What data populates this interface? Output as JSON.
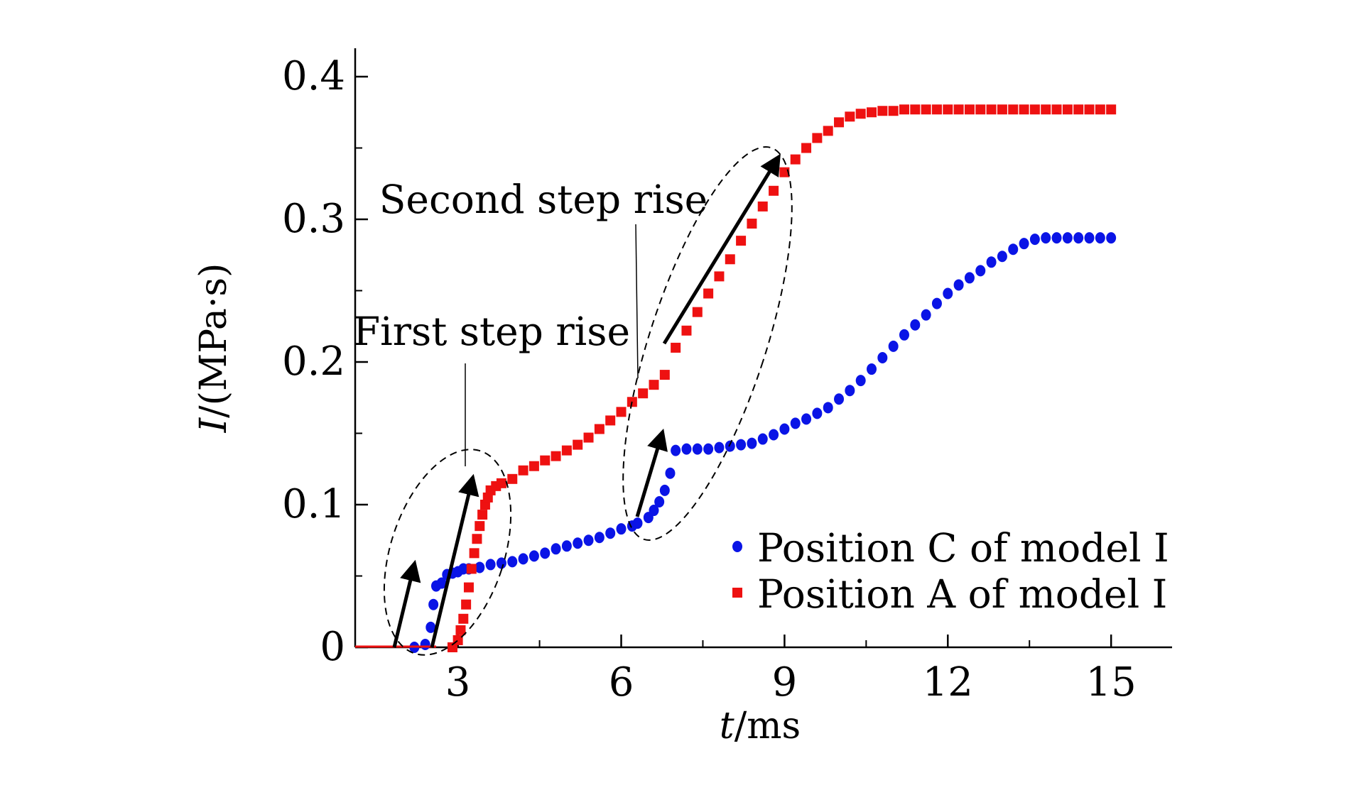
{
  "chart_data": {
    "type": "scatter",
    "xlabel_italic": "t",
    "xlabel_rest": "/ms",
    "ylabel_italic": "I",
    "ylabel_rest": "/(MPa·s)",
    "xlim": [
      1.5,
      16
    ],
    "ylim": [
      0,
      0.42
    ],
    "xticks": [
      3,
      6,
      9,
      12,
      15
    ],
    "xtick_labels": [
      "3",
      "6",
      "9",
      "12",
      "15"
    ],
    "yticks": [
      0,
      0.1,
      0.2,
      0.3,
      0.4
    ],
    "ytick_labels": [
      "0",
      "0.1",
      "0.2",
      "0.3",
      "0.4"
    ],
    "grid": false,
    "legend_position": "bottom-right",
    "annotations": {
      "first": "First step rise",
      "second": "Second step rise"
    },
    "series": [
      {
        "name": "Position C of model Ⅰ",
        "color": "#0a14e6",
        "marker": "circle",
        "x": [
          1.5,
          2.2,
          2.4,
          2.5,
          2.55,
          2.6,
          2.7,
          2.8,
          2.9,
          3.0,
          3.1,
          3.2,
          3.4,
          3.6,
          3.8,
          4.0,
          4.2,
          4.4,
          4.6,
          4.8,
          5.0,
          5.2,
          5.4,
          5.6,
          5.8,
          6.0,
          6.2,
          6.3,
          6.5,
          6.6,
          6.7,
          6.8,
          6.9,
          7.0,
          7.2,
          7.4,
          7.6,
          7.8,
          8.0,
          8.2,
          8.4,
          8.6,
          8.8,
          9.0,
          9.2,
          9.4,
          9.6,
          9.8,
          10.0,
          10.2,
          10.4,
          10.6,
          10.8,
          11.0,
          11.2,
          11.4,
          11.6,
          11.8,
          12.0,
          12.2,
          12.4,
          12.6,
          12.8,
          13.0,
          13.2,
          13.4,
          13.6,
          13.8,
          14.0,
          14.2,
          14.4,
          14.6,
          14.8,
          15.0
        ],
        "y": [
          0,
          0,
          0.002,
          0.014,
          0.03,
          0.043,
          0.045,
          0.051,
          0.052,
          0.053,
          0.055,
          0.055,
          0.056,
          0.058,
          0.059,
          0.06,
          0.062,
          0.064,
          0.066,
          0.069,
          0.071,
          0.073,
          0.075,
          0.077,
          0.08,
          0.083,
          0.085,
          0.087,
          0.091,
          0.096,
          0.102,
          0.11,
          0.122,
          0.138,
          0.139,
          0.139,
          0.139,
          0.14,
          0.141,
          0.142,
          0.143,
          0.146,
          0.149,
          0.153,
          0.157,
          0.16,
          0.164,
          0.168,
          0.174,
          0.18,
          0.187,
          0.195,
          0.203,
          0.211,
          0.219,
          0.226,
          0.233,
          0.241,
          0.248,
          0.254,
          0.259,
          0.264,
          0.27,
          0.274,
          0.279,
          0.283,
          0.286,
          0.287,
          0.287,
          0.287,
          0.287,
          0.287,
          0.287,
          0.287
        ]
      },
      {
        "name": "Position A of model Ⅰ",
        "color": "#ee1111",
        "marker": "square",
        "x": [
          1.5,
          2.9,
          3.0,
          3.05,
          3.1,
          3.15,
          3.2,
          3.25,
          3.3,
          3.35,
          3.4,
          3.45,
          3.5,
          3.55,
          3.6,
          3.7,
          3.8,
          4.0,
          4.2,
          4.4,
          4.6,
          4.8,
          5.0,
          5.2,
          5.4,
          5.6,
          5.8,
          6.0,
          6.2,
          6.4,
          6.6,
          6.8,
          7.0,
          7.2,
          7.4,
          7.6,
          7.8,
          8.0,
          8.2,
          8.4,
          8.6,
          8.8,
          9.0,
          9.2,
          9.4,
          9.6,
          9.8,
          10.0,
          10.2,
          10.4,
          10.6,
          10.8,
          11.0,
          11.2,
          11.4,
          11.6,
          11.8,
          12.0,
          12.2,
          12.4,
          12.6,
          12.8,
          13.0,
          13.2,
          13.4,
          13.6,
          13.8,
          14.0,
          14.2,
          14.4,
          14.6,
          14.8,
          15.0
        ],
        "y": [
          0,
          0,
          0.005,
          0.012,
          0.02,
          0.03,
          0.042,
          0.055,
          0.066,
          0.076,
          0.085,
          0.093,
          0.1,
          0.105,
          0.11,
          0.113,
          0.115,
          0.118,
          0.124,
          0.127,
          0.131,
          0.134,
          0.138,
          0.142,
          0.147,
          0.153,
          0.159,
          0.165,
          0.172,
          0.178,
          0.184,
          0.191,
          0.21,
          0.222,
          0.235,
          0.248,
          0.26,
          0.272,
          0.285,
          0.297,
          0.309,
          0.32,
          0.333,
          0.342,
          0.35,
          0.357,
          0.362,
          0.368,
          0.372,
          0.374,
          0.375,
          0.376,
          0.376,
          0.377,
          0.377,
          0.377,
          0.377,
          0.377,
          0.377,
          0.377,
          0.377,
          0.377,
          0.377,
          0.377,
          0.377,
          0.377,
          0.377,
          0.377,
          0.377,
          0.377,
          0.377,
          0.377,
          0.377
        ]
      }
    ]
  }
}
